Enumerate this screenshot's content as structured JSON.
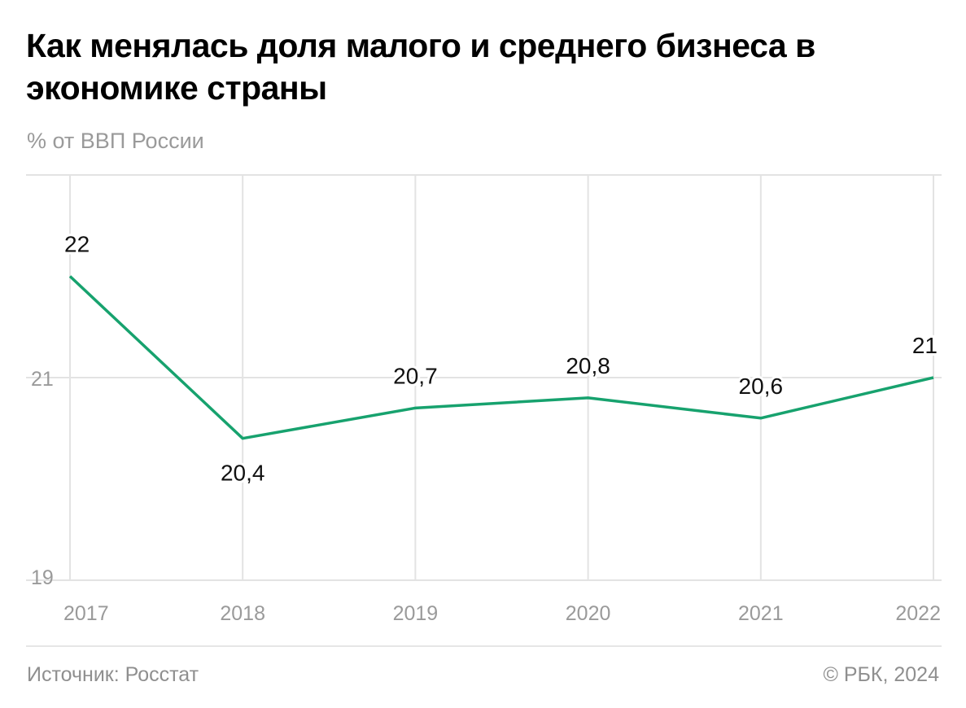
{
  "title": "Как менялась доля малого и среднего бизнеса в экономике страны",
  "subtitle": "% от ВВП России",
  "footer": {
    "source": "Источник: Росстат",
    "copyright": "© РБК, 2024"
  },
  "colors": {
    "line": "#17a26e",
    "grid": "#e3e3e3",
    "axis_text": "#9a9a9a"
  },
  "chart_data": {
    "type": "line",
    "title": "Как менялась доля малого и среднего бизнеса в экономике страны",
    "ylabel": "% от ВВП России",
    "categories": [
      "2017",
      "2018",
      "2019",
      "2020",
      "2021",
      "2022"
    ],
    "values": [
      22,
      20.4,
      20.7,
      20.8,
      20.6,
      21
    ],
    "data_labels": [
      "22",
      "20,4",
      "20,7",
      "20,8",
      "20,6",
      "21"
    ],
    "ylim": [
      19,
      23
    ],
    "yticks": [
      19,
      21,
      23
    ],
    "ytick_labels": [
      "19",
      "21",
      ""
    ],
    "grid": true,
    "legend": "none"
  }
}
